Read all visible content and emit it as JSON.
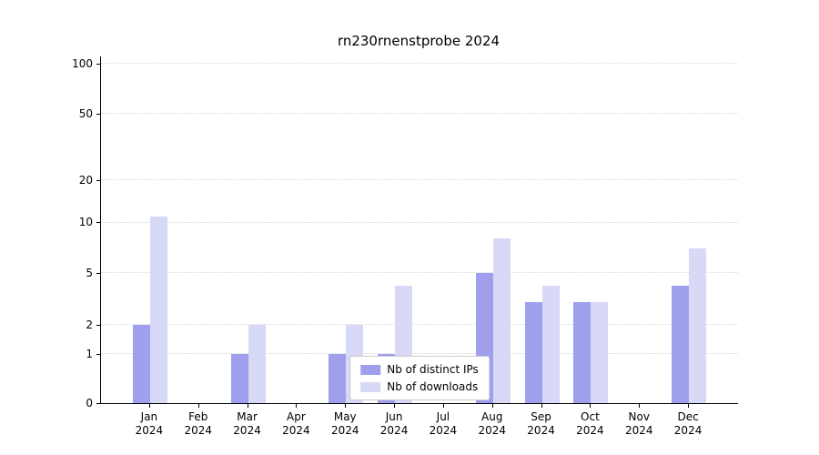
{
  "title": "rn230rnenstprobe 2024",
  "colors": {
    "distinct_ips": "#9f9fee",
    "downloads": "#d8d8f7",
    "grid": "#d9d9d9",
    "axis": "#000000",
    "legend_border": "#cccccc",
    "background": "#ffffff"
  },
  "chart_data": {
    "type": "bar",
    "title": "rn230rnenstprobe 2024",
    "categories": [
      "Jan 2024",
      "Feb 2024",
      "Mar 2024",
      "Apr 2024",
      "May 2024",
      "Jun 2024",
      "Jul 2024",
      "Aug 2024",
      "Sep 2024",
      "Oct 2024",
      "Nov 2024",
      "Dec 2024"
    ],
    "series": [
      {
        "name": "Nb of distinct IPs",
        "color_key": "distinct_ips",
        "values": [
          2,
          0,
          1,
          0,
          1,
          1,
          0,
          5,
          3,
          3,
          0,
          4
        ]
      },
      {
        "name": "Nb of downloads",
        "color_key": "downloads",
        "values": [
          11,
          0,
          2,
          0,
          2,
          4,
          0,
          8,
          4,
          3,
          0,
          7
        ]
      }
    ],
    "xlabel": "",
    "ylabel": "",
    "yticks": [
      0,
      1,
      2,
      5,
      10,
      20,
      50,
      100
    ],
    "yscale": "log-like",
    "ylim": [
      0,
      100
    ],
    "grid": "horizontal-dotted",
    "legend_position": "lower center"
  }
}
